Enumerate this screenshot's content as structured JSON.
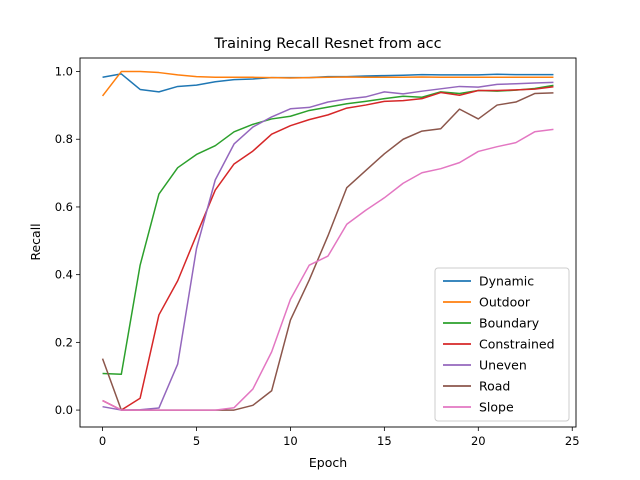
{
  "chart_data": {
    "type": "line",
    "title": "Training Recall Resnet from acc",
    "xlabel": "Epoch",
    "ylabel": "Recall",
    "xlim": [
      -1.2,
      25.2
    ],
    "ylim": [
      -0.05,
      1.04
    ],
    "xticks": [
      0,
      5,
      10,
      15,
      20,
      25
    ],
    "yticks": [
      0.0,
      0.2,
      0.4,
      0.6,
      0.8,
      1.0
    ],
    "ytick_labels": [
      "0.0",
      "0.2",
      "0.4",
      "0.6",
      "0.8",
      "1.0"
    ],
    "grid": false,
    "legend_position": "lower right",
    "x": [
      0,
      1,
      2,
      3,
      4,
      5,
      6,
      7,
      8,
      9,
      10,
      11,
      12,
      13,
      14,
      15,
      16,
      17,
      18,
      19,
      20,
      21,
      22,
      23,
      24
    ],
    "series": [
      {
        "name": "Dynamic",
        "color": "#1f77b4",
        "values": [
          0.983,
          0.993,
          0.947,
          0.94,
          0.956,
          0.96,
          0.97,
          0.976,
          0.978,
          0.982,
          0.982,
          0.982,
          0.985,
          0.985,
          0.987,
          0.988,
          0.989,
          0.991,
          0.99,
          0.99,
          0.99,
          0.992,
          0.991,
          0.991,
          0.991
        ]
      },
      {
        "name": "Outdoor",
        "color": "#ff7f0e",
        "values": [
          0.928,
          1.0,
          1.0,
          0.997,
          0.99,
          0.985,
          0.983,
          0.983,
          0.983,
          0.982,
          0.981,
          0.982,
          0.983,
          0.984,
          0.983,
          0.983,
          0.983,
          0.984,
          0.983,
          0.983,
          0.983,
          0.983,
          0.983,
          0.983,
          0.983
        ]
      },
      {
        "name": "Boundary",
        "color": "#2ca02c",
        "values": [
          0.108,
          0.106,
          0.428,
          0.638,
          0.716,
          0.755,
          0.781,
          0.822,
          0.844,
          0.86,
          0.868,
          0.885,
          0.895,
          0.905,
          0.912,
          0.92,
          0.927,
          0.924,
          0.94,
          0.935,
          0.944,
          0.942,
          0.945,
          0.95,
          0.959
        ]
      },
      {
        "name": "Constrained",
        "color": "#d62728",
        "values": [
          0.028,
          0.0,
          0.035,
          0.281,
          0.382,
          0.517,
          0.65,
          0.727,
          0.765,
          0.815,
          0.84,
          0.858,
          0.872,
          0.892,
          0.901,
          0.912,
          0.914,
          0.92,
          0.938,
          0.93,
          0.944,
          0.944,
          0.946,
          0.948,
          0.955
        ]
      },
      {
        "name": "Uneven",
        "color": "#9467bd",
        "values": [
          0.01,
          0.0,
          0.001,
          0.006,
          0.136,
          0.477,
          0.68,
          0.786,
          0.836,
          0.866,
          0.89,
          0.894,
          0.91,
          0.919,
          0.925,
          0.94,
          0.934,
          0.942,
          0.949,
          0.956,
          0.954,
          0.962,
          0.964,
          0.966,
          0.968
        ]
      },
      {
        "name": "Road",
        "color": "#8c564b",
        "values": [
          0.152,
          0.0,
          0.0,
          0.0,
          0.0,
          0.0,
          0.0,
          0.0,
          0.014,
          0.057,
          0.266,
          0.384,
          0.515,
          0.657,
          0.707,
          0.757,
          0.8,
          0.824,
          0.831,
          0.889,
          0.86,
          0.901,
          0.91,
          0.935,
          0.937
        ]
      },
      {
        "name": "Slope",
        "color": "#e377c2",
        "values": [
          0.028,
          0.0,
          0.0,
          0.0,
          0.0,
          0.0,
          0.0,
          0.007,
          0.062,
          0.172,
          0.327,
          0.428,
          0.455,
          0.549,
          0.59,
          0.627,
          0.67,
          0.701,
          0.713,
          0.731,
          0.764,
          0.778,
          0.79,
          0.822,
          0.829
        ]
      }
    ]
  }
}
